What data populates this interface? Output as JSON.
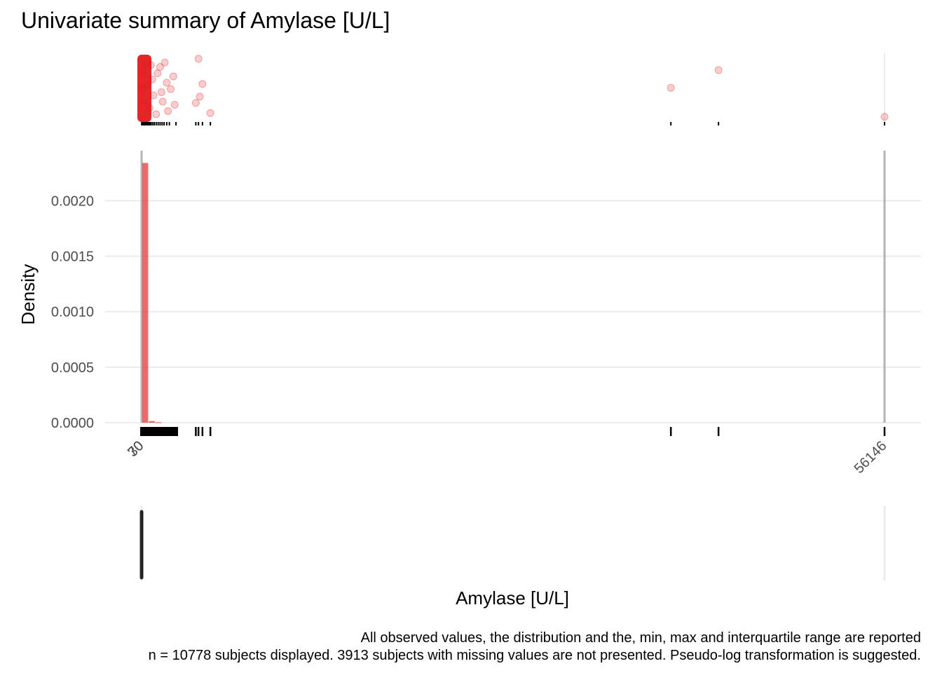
{
  "chart_data": {
    "type": "histogram",
    "title": "Univariate summary of Amylase [U/L]",
    "xlabel": "Amylase [U/L]",
    "ylabel": "Density",
    "ylim": [
      0,
      0.00245
    ],
    "y_ticks": [
      0.0,
      0.0005,
      0.001,
      0.0015,
      0.002
    ],
    "y_tick_labels": [
      "0.0000",
      "0.0005",
      "0.0010",
      "0.0015",
      "0.0020"
    ],
    "x_tick_labels": [
      "30",
      "70",
      "0",
      "56146"
    ],
    "x_min": 0,
    "x_max": 56146,
    "reference_lines": [
      0,
      56146
    ],
    "accent_color": "#e41a1c",
    "histogram": {
      "bin_width": 500,
      "bins": [
        {
          "x0": 0,
          "x1": 500,
          "density": 0.00234
        },
        {
          "x0": 500,
          "x1": 1000,
          "density": 1.5e-05
        },
        {
          "x0": 1000,
          "x1": 1500,
          "density": 4e-06
        }
      ]
    },
    "jitter_points": [
      {
        "x": 50,
        "y": 0.5
      },
      {
        "x": 120,
        "y": 0.8
      },
      {
        "x": 200,
        "y": 0.3
      },
      {
        "x": 320,
        "y": 0.9
      },
      {
        "x": 450,
        "y": 0.55
      },
      {
        "x": 600,
        "y": 0.2
      },
      {
        "x": 700,
        "y": 0.88
      },
      {
        "x": 800,
        "y": 0.65
      },
      {
        "x": 900,
        "y": 0.4
      },
      {
        "x": 1100,
        "y": 0.1
      },
      {
        "x": 1200,
        "y": 0.75
      },
      {
        "x": 1400,
        "y": 0.85
      },
      {
        "x": 1500,
        "y": 0.45
      },
      {
        "x": 1600,
        "y": 0.3
      },
      {
        "x": 1750,
        "y": 0.92
      },
      {
        "x": 1900,
        "y": 0.6
      },
      {
        "x": 2000,
        "y": 0.15
      },
      {
        "x": 2200,
        "y": 0.5
      },
      {
        "x": 2400,
        "y": 0.7
      },
      {
        "x": 2500,
        "y": 0.25
      },
      {
        "x": 4100,
        "y": 0.28
      },
      {
        "x": 4300,
        "y": 0.98
      },
      {
        "x": 4400,
        "y": 0.38
      },
      {
        "x": 4600,
        "y": 0.58
      },
      {
        "x": 5200,
        "y": 0.12
      },
      {
        "x": 40000,
        "y": 0.52
      },
      {
        "x": 43600,
        "y": 0.8
      },
      {
        "x": 56146,
        "y": 0.06
      }
    ],
    "rug_values": [
      10,
      60,
      120,
      180,
      250,
      320,
      400,
      500,
      600,
      700,
      820,
      950,
      1100,
      1250,
      1400,
      1550,
      1700,
      1900,
      2100,
      2600,
      4100,
      4300,
      4600,
      5200,
      40000,
      43600,
      56146
    ],
    "boxplot": {
      "min": 0,
      "q1": 30,
      "median": 50,
      "q3": 70,
      "max": 56146
    },
    "caption": [
      "All observed values, the distribution and the, min, max and interquartile range are reported",
      "n = 10778 subjects displayed. 3913 subjects with missing values are not presented. Pseudo-log transformation is suggested."
    ]
  }
}
